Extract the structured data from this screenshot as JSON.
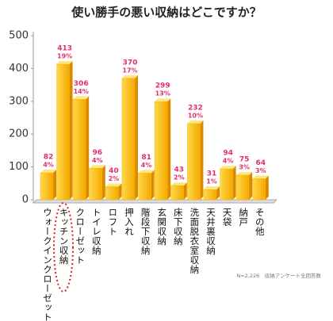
{
  "chart_data": {
    "type": "bar",
    "title": "使い勝手の悪い収納はどこですか？",
    "categories": [
      "ウォークインクローゼット",
      "キッチン収納",
      "クローゼット",
      "トイレ収納",
      "ロフト",
      "押入れ",
      "階段下収納",
      "玄関収納",
      "床下収納",
      "洗面脱衣室収納",
      "天井裏収納",
      "天袋",
      "納戸",
      "その他"
    ],
    "values": [
      82,
      413,
      306,
      96,
      40,
      370,
      81,
      299,
      43,
      232,
      31,
      94,
      75,
      64
    ],
    "share_labels": [
      "4%",
      "19%",
      "14%",
      "4%",
      "2%",
      "17%",
      "4%",
      "13%",
      "2%",
      "10%",
      "1%",
      "4%",
      "3%",
      "3%"
    ],
    "color": "#f7b500",
    "ylim": [
      0,
      500
    ],
    "yticks": [
      0,
      100,
      200,
      300,
      400,
      500
    ],
    "grid": false,
    "note": "N=2,226　収納アンケート全回答数"
  }
}
